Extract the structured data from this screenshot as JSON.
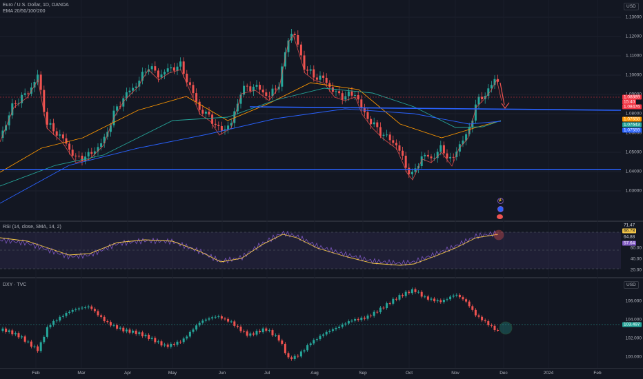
{
  "main": {
    "title": "Euro / U.S. Dollar, 1D, OANDA",
    "indicator": "EMA 20/50/100/200",
    "currency": "USD",
    "axis_ticks": [
      "1.13000",
      "1.12000",
      "1.11000",
      "1.10000",
      "1.09000",
      "1.08000",
      "1.06000",
      "1.05000",
      "1.04000",
      "1.03000"
    ],
    "price_tags": [
      {
        "text": "1.08889",
        "bg": "#f23645"
      },
      {
        "text": "15:40",
        "bg": "#f23645"
      },
      {
        "text": "1.08476",
        "bg": "#f23645"
      },
      {
        "text": "1.07658",
        "bg": "#ff9800"
      },
      {
        "text": "1.07643",
        "bg": "#2196f3"
      },
      {
        "text": "1.07559",
        "bg": "#2962ff"
      }
    ]
  },
  "rsi": {
    "title": "RSI (14, close, SMA, 14, 2)",
    "axis_ticks": [
      "60.00",
      "40.00",
      "20.00"
    ],
    "tags": [
      {
        "text": "71.47",
        "bg": "#131722",
        "fg": "#d1d4dc"
      },
      {
        "text": "66.78",
        "bg": "#f7c948",
        "fg": "#131722"
      },
      {
        "text": "64.88",
        "bg": "#131722",
        "fg": "#d1d4dc"
      },
      {
        "text": "57.64",
        "bg": "#7e57c2",
        "fg": "#ffffff"
      }
    ]
  },
  "dxy": {
    "title": "DXY · TVC",
    "currency": "USD",
    "axis_ticks": [
      "106.000",
      "104.000",
      "102.000",
      "100.000"
    ],
    "tag": "103.497"
  },
  "time_axis": [
    "Feb",
    "Mar",
    "Apr",
    "May",
    "Jun",
    "Jul",
    "Aug",
    "Sep",
    "Oct",
    "Nov",
    "Dec",
    "2024",
    "Feb"
  ],
  "colors": {
    "up": "#26a69a",
    "down": "#ef5350",
    "support": "#2962ff",
    "ema20": "#ef5350",
    "ema50": "#ff9800",
    "ema100": "#26a69a",
    "ema200": "#2962ff",
    "rsi": "#7e57c2",
    "rsi_ma": "#f7c948"
  },
  "events": [
    "lightning-icon",
    "circle-icon",
    "flag-icon"
  ]
}
